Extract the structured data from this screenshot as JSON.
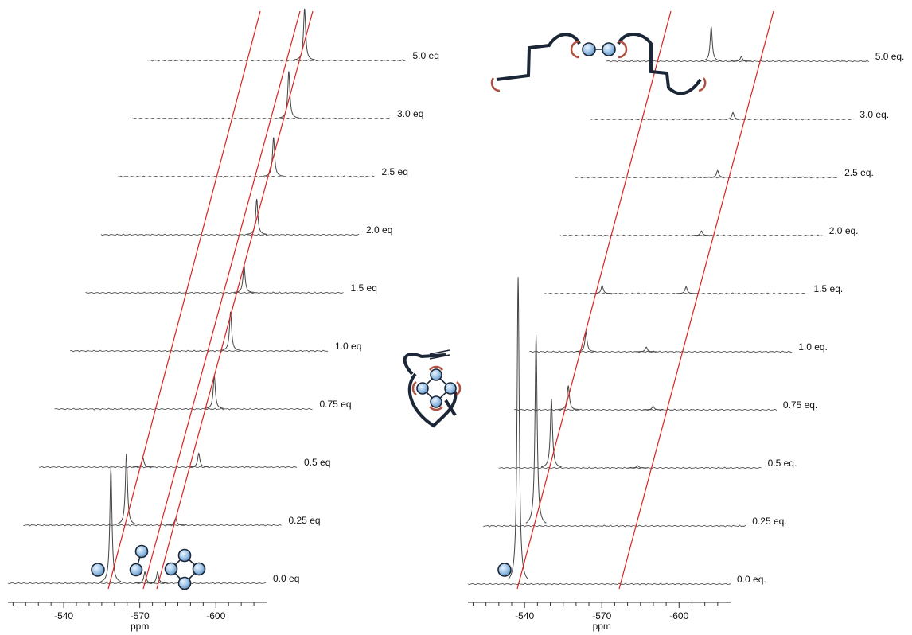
{
  "chart_data": [
    {
      "type": "stacked-spectra",
      "xlabel": "ppm",
      "xlim": [
        -518,
        -620
      ],
      "xticks": [
        -540,
        -570,
        -600
      ],
      "minor_xticks": [
        -520,
        -525,
        -530,
        -535,
        -545,
        -550,
        -555,
        -560,
        -565,
        -575,
        -580,
        -585,
        -590,
        -595,
        -605,
        -610,
        -615
      ],
      "line_color": "#444444",
      "series": [
        {
          "name": "0.0 eq",
          "peaks": [
            -558.6,
            -572,
            -577
          ],
          "intensities": [
            100,
            10,
            10
          ]
        },
        {
          "name": "0.25 eq",
          "peaks": [
            -558.6,
            -578
          ],
          "intensities": [
            62,
            6
          ]
        },
        {
          "name": "0.5 eq",
          "peaks": [
            -559,
            -581
          ],
          "intensities": [
            8,
            12
          ]
        },
        {
          "name": "0.75 eq",
          "peaks": [
            -581
          ],
          "intensities": [
            29
          ]
        },
        {
          "name": "1.0 eq",
          "peaks": [
            -581.3
          ],
          "intensities": [
            34
          ]
        },
        {
          "name": "1.5 eq",
          "peaks": [
            -580.5
          ],
          "intensities": [
            24
          ]
        },
        {
          "name": "2.0 eq",
          "peaks": [
            -579.4
          ],
          "intensities": [
            31
          ]
        },
        {
          "name": "2.5 eq",
          "peaks": [
            -579.9
          ],
          "intensities": [
            34
          ]
        },
        {
          "name": "3.0 eq",
          "peaks": [
            -579.8
          ],
          "intensities": [
            41
          ]
        },
        {
          "name": "5.0 eq",
          "peaks": [
            -579.9
          ],
          "intensities": [
            45
          ]
        }
      ]
    },
    {
      "type": "stacked-spectra",
      "xlabel": "ppm",
      "xlim": [
        -518,
        -620
      ],
      "xticks": [
        -540,
        -570,
        -600
      ],
      "minor_xticks": [
        -520,
        -525,
        -530,
        -535,
        -545,
        -550,
        -555,
        -560,
        -565,
        -575,
        -580,
        -585,
        -590,
        -595,
        -605,
        -610,
        -615
      ],
      "line_color": "#444444",
      "series": [
        {
          "name": "0.0 eq.",
          "peaks": [
            -537.5
          ],
          "intensities": [
            266
          ]
        },
        {
          "name": "0.25 eq.",
          "peaks": [
            -538.5
          ],
          "intensities": [
            166
          ]
        },
        {
          "name": "0.5 eq.",
          "peaks": [
            -538.5,
            -572
          ],
          "intensities": [
            60,
            2
          ]
        },
        {
          "name": "0.75 eq.",
          "peaks": [
            -539.1,
            -572
          ],
          "intensities": [
            21,
            3
          ]
        },
        {
          "name": "1.0 eq.",
          "peaks": [
            -540,
            -563.4
          ],
          "intensities": [
            17,
            4
          ]
        },
        {
          "name": "1.5 eq.",
          "peaks": [
            -540.3,
            -572.9
          ],
          "intensities": [
            7,
            6
          ]
        },
        {
          "name": "2.0 eq.",
          "peaks": [
            -572.9
          ],
          "intensities": [
            4
          ]
        },
        {
          "name": "2.5 eq.",
          "peaks": [
            -573.2
          ],
          "intensities": [
            6
          ]
        },
        {
          "name": "3.0 eq.",
          "peaks": [
            -573.2
          ],
          "intensities": [
            6
          ]
        },
        {
          "name": "5.0 eq.",
          "peaks": [
            -558.8,
            -570.5
          ],
          "intensities": [
            30,
            4
          ]
        }
      ]
    }
  ]
}
